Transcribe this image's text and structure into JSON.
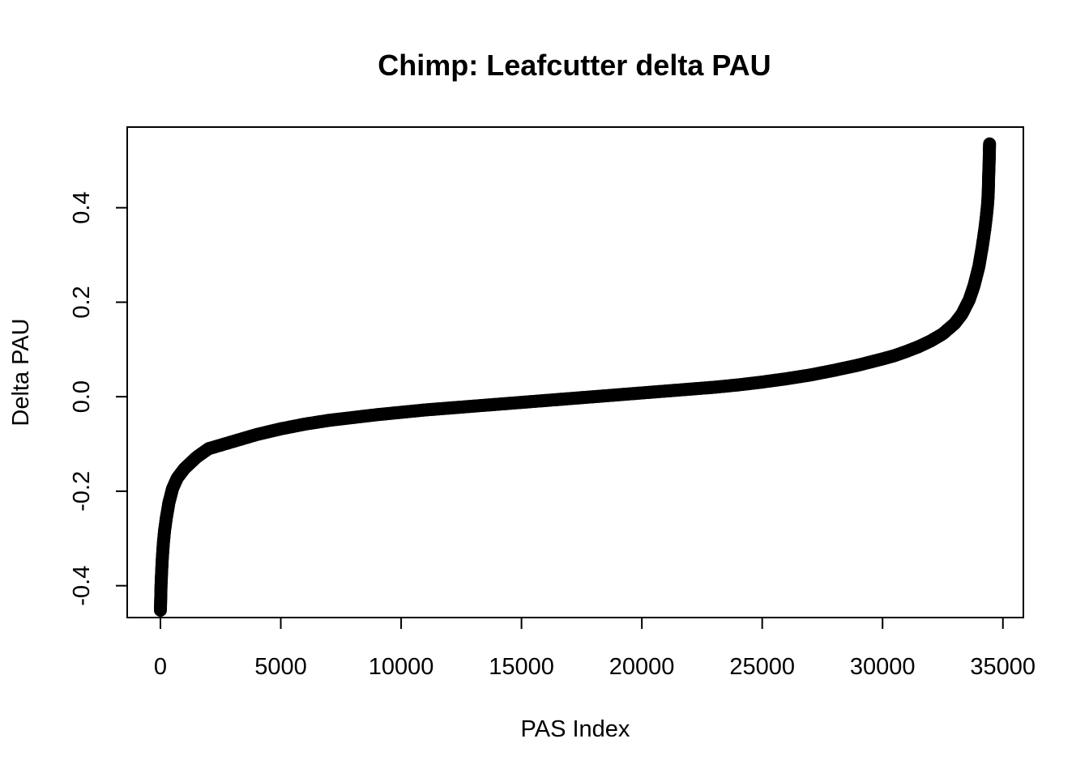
{
  "chart_data": {
    "type": "scatter",
    "title": "Chimp: Leafcutter delta PAU",
    "xlabel": "PAS Index",
    "ylabel": "Delta PAU",
    "xlim": [
      -1380,
      35850
    ],
    "ylim": [
      -0.4674,
      0.5707
    ],
    "x_ticks": [
      0,
      5000,
      10000,
      15000,
      20000,
      25000,
      30000,
      35000
    ],
    "x_tick_labels": [
      "0",
      "5000",
      "10000",
      "15000",
      "20000",
      "25000",
      "30000",
      "35000"
    ],
    "y_ticks": [
      -0.4,
      -0.2,
      0.0,
      0.2,
      0.4
    ],
    "y_tick_labels": [
      "-0.4",
      "-0.2",
      "0.0",
      "0.2",
      "0.4"
    ],
    "grid": false,
    "marker": "open-circle",
    "n_points": 34450,
    "series": [
      {
        "x": [
          0,
          25,
          50,
          80,
          120,
          180,
          250,
          350,
          500,
          700,
          1000,
          1500,
          2000,
          3000,
          4000,
          5000,
          6000,
          7000,
          8000,
          9000,
          10000,
          11000,
          12000,
          13000,
          14000,
          15000,
          16000,
          17000,
          18000,
          19000,
          20000,
          21000,
          22000,
          23000,
          24000,
          25000,
          26000,
          27000,
          28000,
          29000,
          30000,
          30500,
          31000,
          31500,
          32000,
          32500,
          33000,
          33300,
          33600,
          33800,
          34000,
          34150,
          34250,
          34320,
          34360,
          34390,
          34410,
          34430,
          34445
        ],
        "y": [
          -0.452,
          -0.4,
          -0.37,
          -0.34,
          -0.31,
          -0.28,
          -0.255,
          -0.225,
          -0.195,
          -0.172,
          -0.152,
          -0.128,
          -0.11,
          -0.095,
          -0.08,
          -0.068,
          -0.058,
          -0.05,
          -0.044,
          -0.038,
          -0.033,
          -0.028,
          -0.024,
          -0.02,
          -0.016,
          -0.012,
          -0.008,
          -0.004,
          0.0,
          0.004,
          0.008,
          0.012,
          0.016,
          0.02,
          0.025,
          0.031,
          0.038,
          0.046,
          0.056,
          0.067,
          0.08,
          0.087,
          0.096,
          0.106,
          0.118,
          0.133,
          0.155,
          0.175,
          0.205,
          0.235,
          0.275,
          0.32,
          0.355,
          0.385,
          0.405,
          0.43,
          0.47,
          0.5,
          0.535
        ]
      }
    ]
  }
}
